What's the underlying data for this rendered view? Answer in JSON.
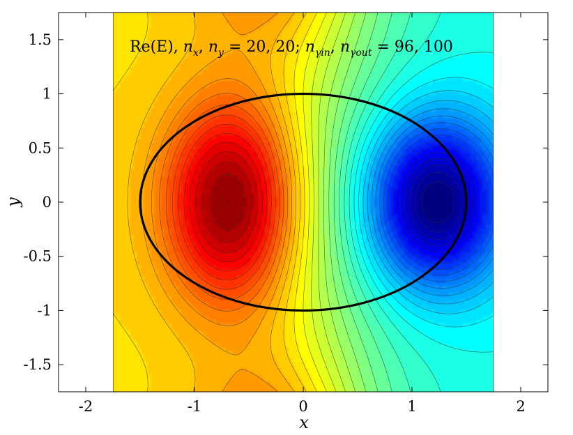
{
  "chart_data": {
    "type": "heatmap",
    "title": "Re(E), n_x, n_y = 20, 20; n_γin, n_γout = 96, 100",
    "title_parts": {
      "fn": "Re(E), ",
      "nx": "n",
      "nx_sub": "x",
      "sep1": ", ",
      "ny": "n",
      "ny_sub": "y",
      "eq1": " = 20, 20; ",
      "ng1": "n",
      "ng1_sub": "γin",
      "sep2": ", ",
      "ng2": "n",
      "ng2_sub": "γout",
      "eq2": " = 96, 100"
    },
    "xlabel": "x",
    "ylabel": "y",
    "xlim": [
      -2.25,
      2.25
    ],
    "ylim": [
      -1.75,
      1.75
    ],
    "field_domain_x": [
      -1.75,
      1.75
    ],
    "xticks": [
      -2,
      -1,
      0,
      1,
      2
    ],
    "xtick_labels": [
      "-2",
      "-1",
      "0",
      "1",
      "2"
    ],
    "yticks": [
      -1.5,
      -1,
      -0.5,
      0,
      0.5,
      1,
      1.5
    ],
    "ytick_labels": [
      "-1.5",
      "-1",
      "-0.5",
      "0",
      "0.5",
      "1",
      "1.5"
    ],
    "colormap": "jet",
    "contour_levels": 40,
    "field_extrema": [
      {
        "kind": "max",
        "x": -0.65,
        "y": 0.0,
        "color": "#8b0000"
      },
      {
        "kind": "min",
        "x": 1.22,
        "y": 0.0,
        "color": "#00008f"
      }
    ],
    "ellipse": {
      "center": [
        0,
        0
      ],
      "semi_x": 1.5,
      "semi_y": 1.0,
      "color": "#000000"
    },
    "grid": false
  }
}
